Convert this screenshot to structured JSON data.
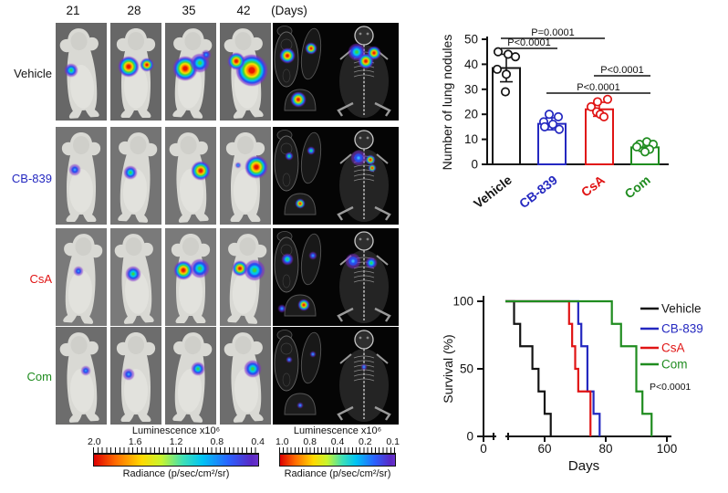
{
  "days_header": [
    "21",
    "28",
    "35",
    "42",
    "(Days)"
  ],
  "groups": [
    {
      "label": "Vehicle",
      "color": "#141414"
    },
    {
      "label": "CB-839",
      "color": "#2428c0"
    },
    {
      "label": "CsA",
      "color": "#e01414"
    },
    {
      "label": "Com",
      "color": "#1f8c1f"
    }
  ],
  "mouse_panel": {
    "rows": [
      {
        "label": "Vehicle",
        "color": "#141414",
        "mice": [
          [
            {
              "x": 17,
              "y": 52,
              "r": 7,
              "lv": 2
            }
          ],
          [
            {
              "x": 20,
              "y": 48,
              "r": 11,
              "lv": 3
            },
            {
              "x": 40,
              "y": 46,
              "r": 7,
              "lv": 3
            }
          ],
          [
            {
              "x": 22,
              "y": 50,
              "r": 13,
              "lv": 3
            },
            {
              "x": 38,
              "y": 44,
              "r": 10,
              "lv": 2
            },
            {
              "x": 45,
              "y": 35,
              "r": 5,
              "lv": 1
            }
          ],
          [
            {
              "x": 35,
              "y": 52,
              "r": 17,
              "lv": 3
            },
            {
              "x": 18,
              "y": 42,
              "r": 9,
              "lv": 3
            }
          ]
        ],
        "organs": [
          {
            "x": 16,
            "y": 36,
            "r": 8,
            "lv": 3
          },
          {
            "x": 42,
            "y": 28,
            "r": 6,
            "lv": 3
          },
          {
            "x": 28,
            "y": 84,
            "r": 8,
            "lv": 3
          }
        ],
        "skeleton": [
          {
            "x": 30,
            "y": 32,
            "r": 9,
            "lv": 2
          },
          {
            "x": 40,
            "y": 42,
            "r": 8,
            "lv": 3
          },
          {
            "x": 49,
            "y": 33,
            "r": 7,
            "lv": 3
          }
        ]
      },
      {
        "label": "CB-839",
        "color": "#2428c0",
        "mice": [
          [
            {
              "x": 21,
              "y": 47,
              "r": 6,
              "lv": 1
            }
          ],
          [
            {
              "x": 22,
              "y": 50,
              "r": 7,
              "lv": 2
            }
          ],
          [
            {
              "x": 39,
              "y": 48,
              "r": 10,
              "lv": 3
            }
          ],
          [
            {
              "x": 40,
              "y": 44,
              "r": 12,
              "lv": 3
            },
            {
              "x": 20,
              "y": 42,
              "r": 3,
              "lv": 1
            }
          ]
        ],
        "organs": [
          {
            "x": 18,
            "y": 32,
            "r": 4,
            "lv": 2
          },
          {
            "x": 42,
            "y": 26,
            "r": 4,
            "lv": 2
          },
          {
            "x": 30,
            "y": 84,
            "r": 5,
            "lv": 3
          }
        ],
        "skeleton": [
          {
            "x": 32,
            "y": 34,
            "r": 8,
            "lv": 1
          },
          {
            "x": 45,
            "y": 36,
            "r": 5,
            "lv": 3
          },
          {
            "x": 47,
            "y": 45,
            "r": 4,
            "lv": 3
          }
        ]
      },
      {
        "label": "CsA",
        "color": "#e01414",
        "mice": [
          [
            {
              "x": 25,
              "y": 47,
              "r": 5,
              "lv": 1
            }
          ],
          [
            {
              "x": 25,
              "y": 50,
              "r": 8,
              "lv": 2
            }
          ],
          [
            {
              "x": 20,
              "y": 46,
              "r": 10,
              "lv": 3
            },
            {
              "x": 38,
              "y": 44,
              "r": 10,
              "lv": 2
            }
          ],
          [
            {
              "x": 22,
              "y": 44,
              "r": 8,
              "lv": 3
            },
            {
              "x": 38,
              "y": 46,
              "r": 11,
              "lv": 2
            }
          ]
        ],
        "organs": [
          {
            "x": 16,
            "y": 34,
            "r": 6,
            "lv": 2
          },
          {
            "x": 44,
            "y": 30,
            "r": 4,
            "lv": 1
          },
          {
            "x": 34,
            "y": 84,
            "r": 6,
            "lv": 3
          },
          {
            "x": 10,
            "y": 88,
            "r": 4,
            "lv": 1
          }
        ],
        "skeleton": [
          {
            "x": 26,
            "y": 36,
            "r": 8,
            "lv": 1
          },
          {
            "x": 46,
            "y": 38,
            "r": 6,
            "lv": 2
          }
        ]
      },
      {
        "label": "Com",
        "color": "#1f8c1f",
        "mice": [
          [
            {
              "x": 33,
              "y": 48,
              "r": 5,
              "lv": 1
            }
          ],
          [
            {
              "x": 20,
              "y": 52,
              "r": 6,
              "lv": 1
            }
          ],
          [
            {
              "x": 36,
              "y": 46,
              "r": 7,
              "lv": 2
            }
          ],
          [
            {
              "x": 36,
              "y": 46,
              "r": 9,
              "lv": 2
            }
          ]
        ],
        "organs": [
          {
            "x": 18,
            "y": 36,
            "r": 3,
            "lv": 1
          },
          {
            "x": 44,
            "y": 30,
            "r": 3,
            "lv": 1
          },
          {
            "x": 30,
            "y": 86,
            "r": 3,
            "lv": 1
          }
        ],
        "skeleton": [
          {
            "x": 38,
            "y": 44,
            "r": 3,
            "lv": 1
          }
        ]
      }
    ]
  },
  "colorbars": [
    {
      "title": "Luminescence x10⁶",
      "ticks": [
        "2.0",
        "1.6",
        "1.2",
        "0.8",
        "0.4"
      ],
      "label": "Radiance (p/sec/cm²/sr)"
    },
    {
      "title": "Luminescence x10⁶",
      "ticks": [
        "1.0",
        "0.8",
        "0.4",
        "0.2",
        "0.1"
      ],
      "label": "Radiance (p/sec/cm²/sr)"
    }
  ],
  "chart_data": [
    {
      "type": "bar",
      "title": "",
      "ylabel": "Number of lung nodules",
      "xlabel": "",
      "ylim": [
        0,
        50
      ],
      "yticks": [
        0,
        10,
        20,
        30,
        40,
        50
      ],
      "categories": [
        "Vehicle",
        "CB-839",
        "CsA",
        "Com"
      ],
      "bar_colors": [
        "#141414",
        "#2428c0",
        "#e01414",
        "#1f8c1f"
      ],
      "values": [
        38.5,
        16.2,
        22,
        6.8
      ],
      "errors": [
        5.5,
        2.4,
        2.8,
        1.6
      ],
      "points": [
        [
          45,
          44,
          43,
          38,
          36,
          29
        ],
        [
          20,
          19,
          17,
          16,
          15,
          14
        ],
        [
          26,
          25,
          23,
          21,
          20,
          19
        ],
        [
          9,
          8,
          8,
          7,
          6,
          5
        ]
      ],
      "significance": [
        {
          "a": 0,
          "b": 2,
          "label": "P=0.0001"
        },
        {
          "a": 0,
          "b": 1,
          "label": "P<0.0001"
        },
        {
          "a": 2,
          "b": 3,
          "label": "P<0.0001"
        },
        {
          "a": 1,
          "b": 3,
          "label": "P<0.0001"
        }
      ]
    },
    {
      "type": "line",
      "subtype": "kaplan-meier",
      "xlabel": "Days",
      "ylabel": "Survival (%)",
      "xticks": [
        0,
        60,
        80,
        100
      ],
      "yticks": [
        0,
        50,
        100
      ],
      "x_axis_break": true,
      "annotation": "P<0.0001",
      "legend_position": "right",
      "series": [
        {
          "name": "Vehicle",
          "color": "#141414",
          "start_day": 48,
          "steps": [
            [
              50,
              83.3
            ],
            [
              52,
              66.7
            ],
            [
              56,
              50
            ],
            [
              58,
              33.3
            ],
            [
              60,
              16.7
            ],
            [
              62,
              0
            ]
          ]
        },
        {
          "name": "CB-839",
          "color": "#2428c0",
          "start_day": 48,
          "steps": [
            [
              71,
              83.3
            ],
            [
              72,
              66.7
            ],
            [
              74,
              33.3
            ],
            [
              76,
              16.7
            ],
            [
              78,
              0
            ]
          ]
        },
        {
          "name": "CsA",
          "color": "#e01414",
          "start_day": 48,
          "steps": [
            [
              68,
              83.3
            ],
            [
              69,
              66.7
            ],
            [
              70,
              50
            ],
            [
              71,
              33.3
            ],
            [
              75,
              0
            ]
          ]
        },
        {
          "name": "Com",
          "color": "#1f8c1f",
          "start_day": 48,
          "steps": [
            [
              82,
              83.3
            ],
            [
              85,
              66.7
            ],
            [
              90,
              33.3
            ],
            [
              92,
              16.7
            ],
            [
              95,
              0
            ]
          ]
        }
      ]
    }
  ]
}
